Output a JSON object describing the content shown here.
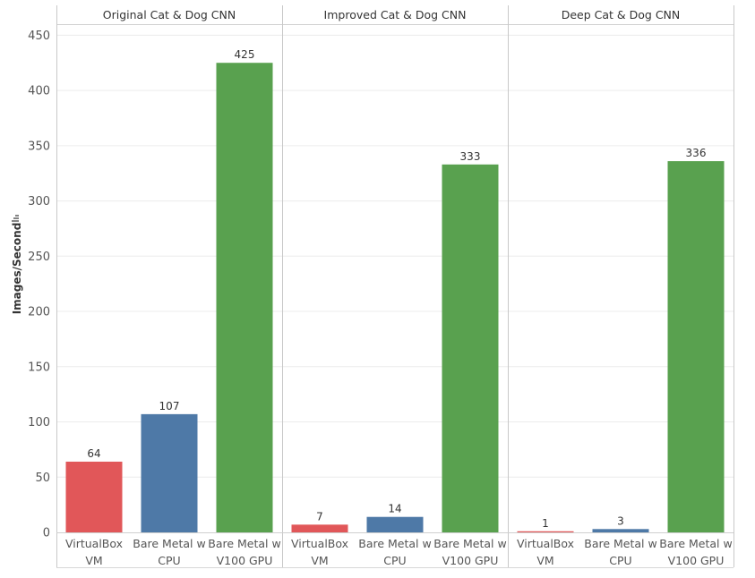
{
  "chart_data": {
    "type": "bar",
    "ylabel": "Images/Second",
    "ylim": [
      0,
      460
    ],
    "yticks": [
      0,
      50,
      100,
      150,
      200,
      250,
      300,
      350,
      400,
      450
    ],
    "grid": true,
    "categories": [
      {
        "line1": "VirtualBox",
        "line2": "VM"
      },
      {
        "line1": "Bare Metal w",
        "line2": "CPU"
      },
      {
        "line1": "Bare Metal w",
        "line2": "V100 GPU"
      }
    ],
    "colors": [
      "#e15759",
      "#4e79a7",
      "#59a14f"
    ],
    "panels": [
      {
        "title": "Original Cat & Dog CNN",
        "values": [
          64,
          107,
          425
        ]
      },
      {
        "title": "Improved Cat & Dog CNN",
        "values": [
          7,
          14,
          333
        ]
      },
      {
        "title": "Deep Cat & Dog CNN",
        "values": [
          1,
          3,
          336
        ]
      }
    ]
  }
}
